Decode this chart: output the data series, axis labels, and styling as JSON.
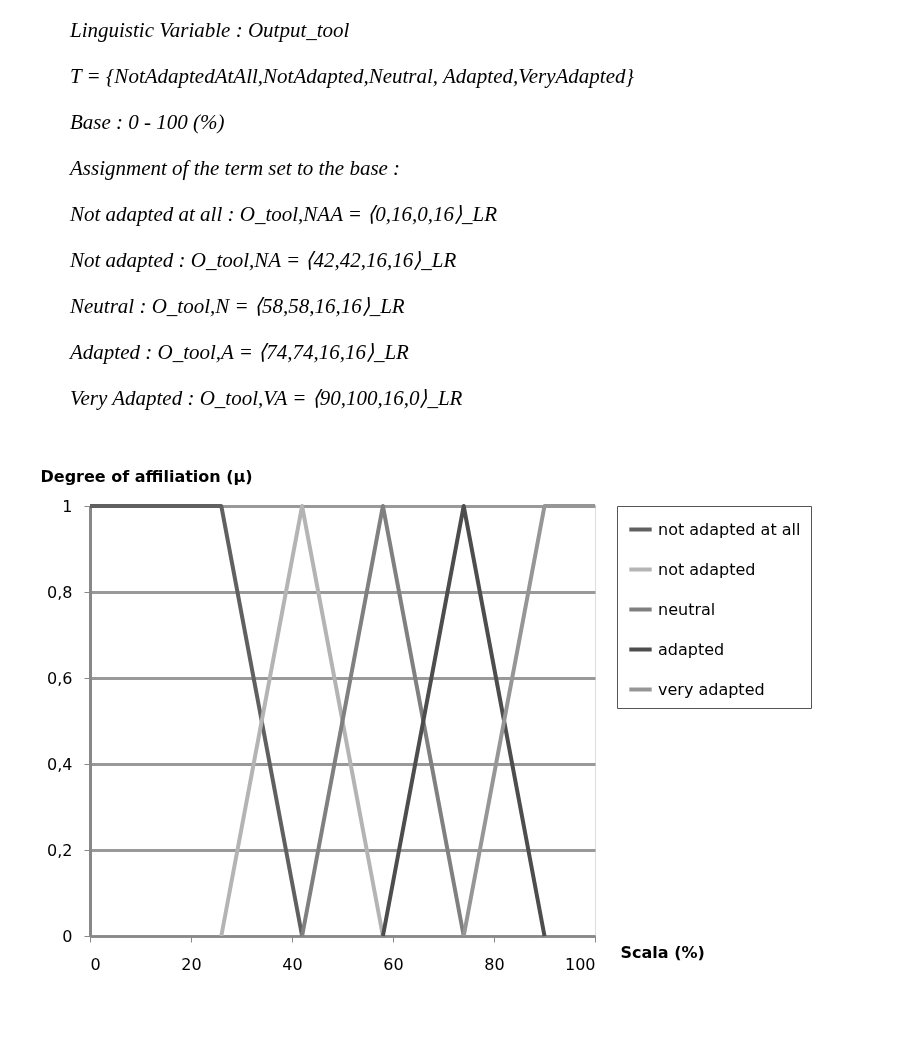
{
  "chart_data": {
    "type": "line",
    "annotations": [
      "Linguistic Variable : Output_tool",
      "T = {NotAdaptedAtAll,NotAdapted,Neutral, Adapted,VeryAdapted}",
      "Base : 0 - 100 (%)",
      "Assignment of the term set to the base :",
      "Not adapted at all :  O_tool,NAA = ⟨0,16,0,16⟩_LR",
      "Not adapted :          O_tool,NA = ⟨42,42,16,16⟩_LR",
      "Neutral :                  O_tool,N = ⟨58,58,16,16⟩_LR",
      "Adapted :                 O_tool,A = ⟨74,74,16,16⟩_LR",
      "Very Adapted :          O_tool,VA = ⟨90,100,16,0⟩_LR"
    ],
    "xlabel": "Scala (%)",
    "ylabel": "Degree of affiliation (μ)",
    "xlim": [
      0,
      100
    ],
    "xticks": [
      0,
      20,
      40,
      60,
      80,
      100
    ],
    "ylim": [
      0,
      1
    ],
    "yticks": [
      0,
      {
        "value": 0.2,
        "label": "0,2"
      },
      {
        "value": 0.4,
        "label": "0,4"
      },
      {
        "value": 0.6,
        "label": "0,6"
      },
      {
        "value": 0.8,
        "label": "0,8"
      },
      1
    ],
    "grid": "y",
    "legend": "right",
    "marker": "none",
    "series": [
      {
        "name": "not adapted at all",
        "color": "#606060",
        "x": [
          0,
          26,
          42
        ],
        "values": [
          1,
          1,
          0
        ]
      },
      {
        "name": "not adapted",
        "color": "#b4b4b4",
        "x": [
          26,
          42,
          58
        ],
        "values": [
          0,
          1,
          0
        ]
      },
      {
        "name": "neutral",
        "color": "#808080",
        "x": [
          42,
          58,
          74
        ],
        "values": [
          0,
          1,
          0
        ]
      },
      {
        "name": "adapted",
        "color": "#4d4d4d",
        "x": [
          58,
          74,
          90
        ],
        "values": [
          0,
          1,
          0
        ]
      },
      {
        "name": "very adapted",
        "color": "#969696",
        "x": [
          74,
          90,
          100
        ],
        "values": [
          0,
          1,
          1
        ]
      }
    ]
  }
}
